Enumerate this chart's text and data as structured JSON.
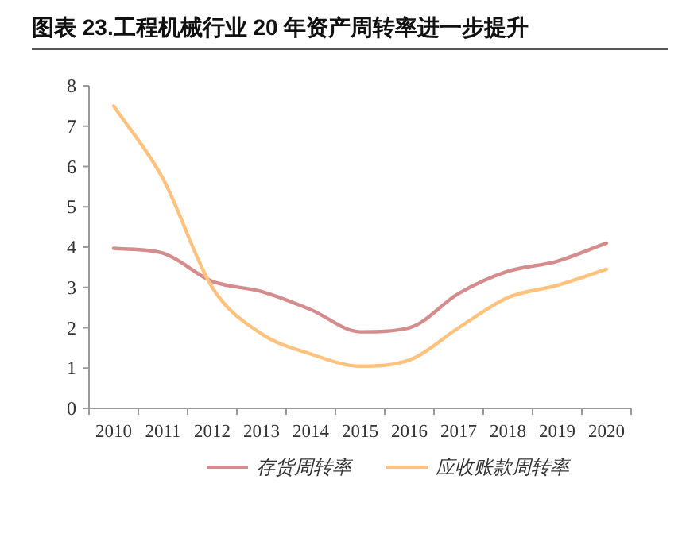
{
  "chart_data": {
    "type": "line",
    "title": "图表 23.工程机械行业 20 年资产周转率进一步提升",
    "categories": [
      "2010",
      "2011",
      "2012",
      "2013",
      "2014",
      "2015",
      "2016",
      "2017",
      "2018",
      "2019",
      "2020"
    ],
    "series": [
      {
        "name": "存货周转率",
        "color": "#d48c8c",
        "values": [
          3.97,
          3.85,
          3.15,
          2.9,
          2.45,
          1.9,
          2.0,
          2.85,
          3.4,
          3.65,
          4.1
        ]
      },
      {
        "name": "应收账款周转率",
        "color": "#ffc27f",
        "values": [
          7.5,
          5.7,
          3.0,
          1.85,
          1.35,
          1.05,
          1.2,
          2.0,
          2.75,
          3.05,
          3.45
        ]
      }
    ],
    "ylim": [
      0,
      8
    ],
    "yticks": [
      0,
      1,
      2,
      3,
      4,
      5,
      6,
      7,
      8
    ],
    "grid": false,
    "legend": "bottom",
    "marker": "none",
    "line_style": "solid"
  }
}
